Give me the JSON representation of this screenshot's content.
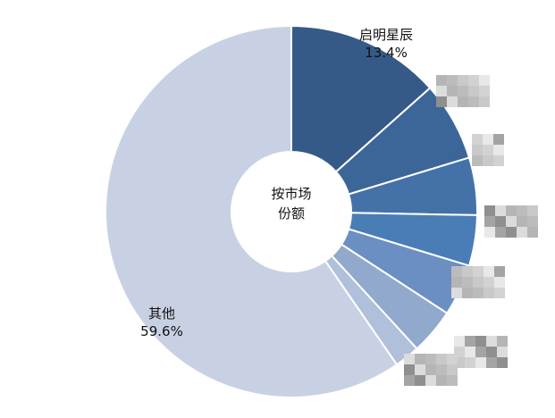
{
  "chart_data": {
    "type": "pie",
    "variant": "donut",
    "center_label": [
      "按市场",
      "份额"
    ],
    "slices": [
      {
        "name": "启明星辰",
        "value": 13.4,
        "label": "13.4%",
        "color": "#365a87",
        "label_visible": true
      },
      {
        "name": "",
        "value": 6.9,
        "color": "#3c6698",
        "label_visible": false
      },
      {
        "name": "",
        "value": 5.0,
        "color": "#4472a8",
        "label_visible": false
      },
      {
        "name": "",
        "value": 4.4,
        "color": "#4a7db6",
        "label_visible": false
      },
      {
        "name": "",
        "value": 4.5,
        "color": "#6b8fc2",
        "label_visible": false
      },
      {
        "name": "",
        "value": 4.0,
        "color": "#91a9cc",
        "label_visible": false
      },
      {
        "name": "",
        "value": 2.2,
        "color": "#b0c0db",
        "label_visible": false
      },
      {
        "name": "其他",
        "value": 59.6,
        "label": "59.6%",
        "color": "#c8d1e4",
        "label_visible": true
      }
    ],
    "start_angle": "12 o'clock",
    "direction": "clockwise",
    "legend": "none"
  }
}
